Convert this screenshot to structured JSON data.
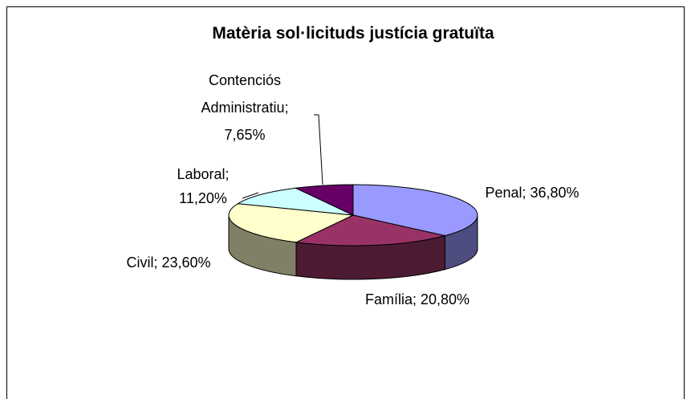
{
  "chart_data": {
    "type": "pie3d",
    "title": "Matèria sol·licituds justícia gratuïta",
    "categories": [
      "Penal",
      "Família",
      "Civil",
      "Laboral",
      "Contenciós Administratiu"
    ],
    "values": [
      36.8,
      20.8,
      23.6,
      11.2,
      7.65
    ],
    "value_labels": [
      "36,80%",
      "20,80%",
      "23,60%",
      "11,20%",
      "7,65%"
    ],
    "label_separator": ";",
    "colors": [
      "#9999ff",
      "#993366",
      "#ffffcc",
      "#ccffff",
      "#660066"
    ]
  }
}
